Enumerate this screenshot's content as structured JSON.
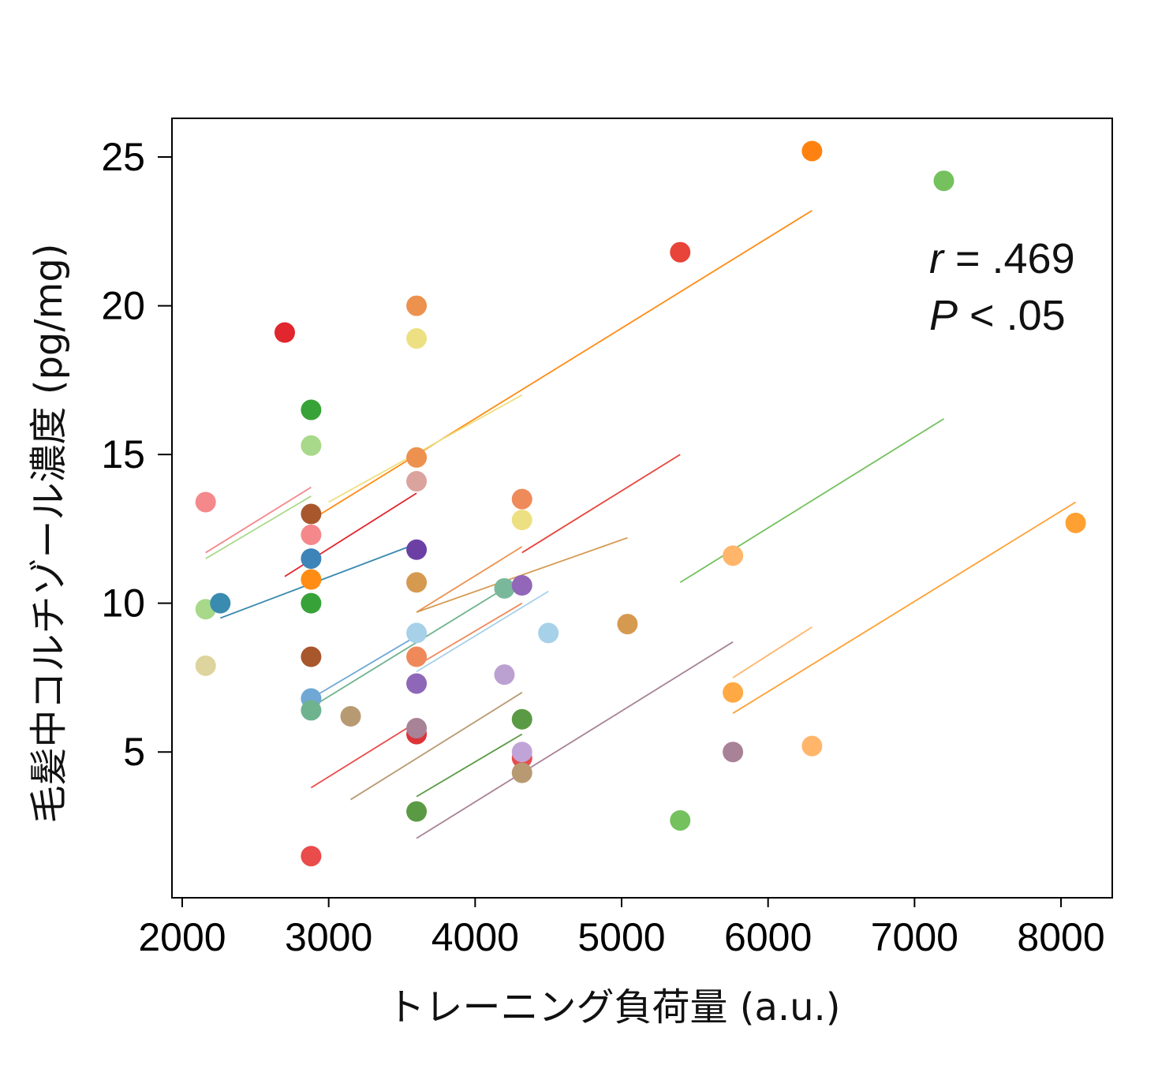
{
  "chart_data": {
    "type": "scatter",
    "title": "",
    "xlabel": "トレーニング負荷量 (a.u.)",
    "ylabel": "毛髪中コルチゾール濃度 (pg/mg)",
    "xlim": [
      1930,
      8350
    ],
    "ylim": [
      0.1,
      26.3
    ],
    "xticks": [
      2000,
      3000,
      4000,
      5000,
      6000,
      7000,
      8000
    ],
    "yticks": [
      5,
      10,
      15,
      20,
      25
    ],
    "xtick_labels": [
      "2000",
      "3000",
      "4000",
      "5000",
      "6000",
      "7000",
      "8000"
    ],
    "ytick_labels": [
      "5",
      "10",
      "15",
      "20",
      "25"
    ],
    "annotation": {
      "r_label": "r",
      "r_text": " = .469",
      "p_label": "P",
      "p_text": " < .05"
    },
    "points": [
      {
        "x": 2160,
        "y": 13.4,
        "color": "#f4888b"
      },
      {
        "x": 2160,
        "y": 9.8,
        "color": "#a8d98a"
      },
      {
        "x": 2160,
        "y": 7.9,
        "color": "#ddd49e"
      },
      {
        "x": 2260,
        "y": 10.0,
        "color": "#3a8bb0"
      },
      {
        "x": 2700,
        "y": 19.1,
        "color": "#e1262d"
      },
      {
        "x": 2880,
        "y": 16.5,
        "color": "#37a238"
      },
      {
        "x": 2880,
        "y": 15.3,
        "color": "#a8d98a"
      },
      {
        "x": 2880,
        "y": 13.0,
        "color": "#a8572c"
      },
      {
        "x": 2880,
        "y": 12.3,
        "color": "#f4888b"
      },
      {
        "x": 2880,
        "y": 11.5,
        "color": "#3d84b8"
      },
      {
        "x": 2880,
        "y": 10.8,
        "color": "#ff8c14"
      },
      {
        "x": 2880,
        "y": 10.0,
        "color": "#37a238"
      },
      {
        "x": 2880,
        "y": 8.2,
        "color": "#a8572c"
      },
      {
        "x": 2880,
        "y": 6.8,
        "color": "#6fa8d4"
      },
      {
        "x": 2880,
        "y": 6.4,
        "color": "#6fb38e"
      },
      {
        "x": 2880,
        "y": 1.5,
        "color": "#ea4b4b"
      },
      {
        "x": 3150,
        "y": 6.2,
        "color": "#b89a72"
      },
      {
        "x": 3600,
        "y": 20.0,
        "color": "#ed914e"
      },
      {
        "x": 3600,
        "y": 18.9,
        "color": "#ede082"
      },
      {
        "x": 3600,
        "y": 14.9,
        "color": "#ed914e"
      },
      {
        "x": 3600,
        "y": 14.1,
        "color": "#daa39e"
      },
      {
        "x": 3600,
        "y": 11.8,
        "color": "#6c3fa5"
      },
      {
        "x": 3600,
        "y": 10.7,
        "color": "#d59a50"
      },
      {
        "x": 3600,
        "y": 9.0,
        "color": "#a6d1e8"
      },
      {
        "x": 3600,
        "y": 8.2,
        "color": "#f0895a"
      },
      {
        "x": 3600,
        "y": 7.3,
        "color": "#8e67b8"
      },
      {
        "x": 3600,
        "y": 5.6,
        "color": "#de3438"
      },
      {
        "x": 3600,
        "y": 5.8,
        "color": "#a88296"
      },
      {
        "x": 3600,
        "y": 3.0,
        "color": "#5b9a44"
      },
      {
        "x": 4200,
        "y": 10.5,
        "color": "#7ab89c"
      },
      {
        "x": 4200,
        "y": 7.6,
        "color": "#bba1d1"
      },
      {
        "x": 4320,
        "y": 13.5,
        "color": "#ef8a5a"
      },
      {
        "x": 4320,
        "y": 12.8,
        "color": "#ede082"
      },
      {
        "x": 4320,
        "y": 10.6,
        "color": "#9266b8"
      },
      {
        "x": 4320,
        "y": 6.1,
        "color": "#5b9a44"
      },
      {
        "x": 4320,
        "y": 4.8,
        "color": "#ea4b4b"
      },
      {
        "x": 4320,
        "y": 5.0,
        "color": "#c0a4d8"
      },
      {
        "x": 4320,
        "y": 4.3,
        "color": "#b89a72"
      },
      {
        "x": 4500,
        "y": 9.0,
        "color": "#a6d1e8"
      },
      {
        "x": 5040,
        "y": 9.3,
        "color": "#d59a50"
      },
      {
        "x": 5400,
        "y": 21.8,
        "color": "#e8443a"
      },
      {
        "x": 5400,
        "y": 2.7,
        "color": "#74c15e"
      },
      {
        "x": 5760,
        "y": 11.6,
        "color": "#ffb66b"
      },
      {
        "x": 5760,
        "y": 7.0,
        "color": "#ffa944"
      },
      {
        "x": 5760,
        "y": 5.0,
        "color": "#a88296"
      },
      {
        "x": 6300,
        "y": 25.2,
        "color": "#ff8210"
      },
      {
        "x": 6300,
        "y": 5.2,
        "color": "#ffb66b"
      },
      {
        "x": 7200,
        "y": 24.2,
        "color": "#74c15e"
      },
      {
        "x": 8100,
        "y": 12.7,
        "color": "#ffa033"
      }
    ],
    "fit_lines": [
      {
        "x1": 2160,
        "y1": 11.7,
        "x2": 2880,
        "y2": 13.9,
        "color": "#f4888b"
      },
      {
        "x1": 2160,
        "y1": 11.5,
        "x2": 2880,
        "y2": 13.6,
        "color": "#a8d98a"
      },
      {
        "x1": 2260,
        "y1": 9.5,
        "x2": 3600,
        "y2": 12.0,
        "color": "#3a8bb0"
      },
      {
        "x1": 2700,
        "y1": 10.9,
        "x2": 3600,
        "y2": 13.7,
        "color": "#e1262d"
      },
      {
        "x1": 2880,
        "y1": 12.8,
        "x2": 6300,
        "y2": 23.2,
        "color": "#ff8c14"
      },
      {
        "x1": 3000,
        "y1": 13.4,
        "x2": 4320,
        "y2": 17.0,
        "color": "#ede082"
      },
      {
        "x1": 2880,
        "y1": 6.8,
        "x2": 3600,
        "y2": 8.9,
        "color": "#6fa8d4"
      },
      {
        "x1": 2880,
        "y1": 6.5,
        "x2": 4200,
        "y2": 10.5,
        "color": "#6fb38e"
      },
      {
        "x1": 3600,
        "y1": 7.7,
        "x2": 4500,
        "y2": 10.4,
        "color": "#a6d1e8"
      },
      {
        "x1": 3600,
        "y1": 7.9,
        "x2": 4320,
        "y2": 10.0,
        "color": "#f0895a"
      },
      {
        "x1": 3600,
        "y1": 9.7,
        "x2": 4320,
        "y2": 11.9,
        "color": "#ed914e"
      },
      {
        "x1": 3600,
        "y1": 9.7,
        "x2": 5040,
        "y2": 12.2,
        "color": "#d59a50"
      },
      {
        "x1": 4320,
        "y1": 11.7,
        "x2": 5400,
        "y2": 15.0,
        "color": "#e8443a"
      },
      {
        "x1": 5400,
        "y1": 10.7,
        "x2": 7200,
        "y2": 16.2,
        "color": "#74c15e"
      },
      {
        "x1": 5760,
        "y1": 7.5,
        "x2": 6300,
        "y2": 9.2,
        "color": "#ffb66b"
      },
      {
        "x1": 5760,
        "y1": 6.3,
        "x2": 8100,
        "y2": 13.4,
        "color": "#ffa033"
      },
      {
        "x1": 2880,
        "y1": 3.8,
        "x2": 3600,
        "y2": 6.0,
        "color": "#ea4b4b"
      },
      {
        "x1": 3150,
        "y1": 3.4,
        "x2": 4320,
        "y2": 7.0,
        "color": "#b89a72"
      },
      {
        "x1": 3600,
        "y1": 3.5,
        "x2": 4320,
        "y2": 5.6,
        "color": "#5b9a44"
      },
      {
        "x1": 3600,
        "y1": 2.1,
        "x2": 5760,
        "y2": 8.7,
        "color": "#a88296"
      }
    ]
  }
}
